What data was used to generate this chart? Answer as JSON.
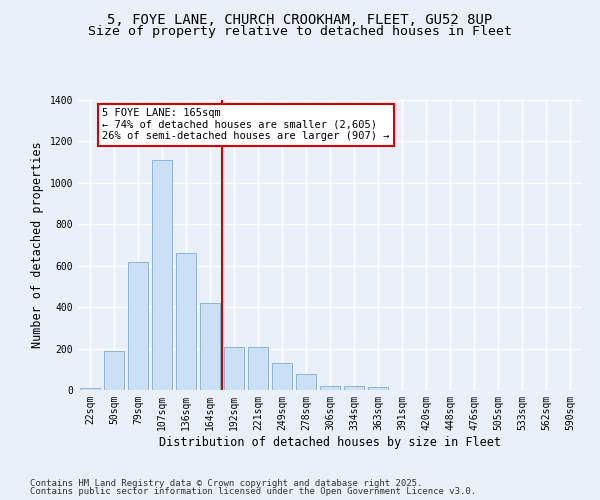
{
  "title_line1": "5, FOYE LANE, CHURCH CROOKHAM, FLEET, GU52 8UP",
  "title_line2": "Size of property relative to detached houses in Fleet",
  "xlabel": "Distribution of detached houses by size in Fleet",
  "ylabel": "Number of detached properties",
  "categories": [
    "22sqm",
    "50sqm",
    "79sqm",
    "107sqm",
    "136sqm",
    "164sqm",
    "192sqm",
    "221sqm",
    "249sqm",
    "278sqm",
    "306sqm",
    "334sqm",
    "363sqm",
    "391sqm",
    "420sqm",
    "448sqm",
    "476sqm",
    "505sqm",
    "533sqm",
    "562sqm",
    "590sqm"
  ],
  "values": [
    10,
    190,
    620,
    1110,
    660,
    420,
    210,
    210,
    130,
    75,
    20,
    20,
    15,
    0,
    0,
    0,
    0,
    0,
    0,
    0,
    0
  ],
  "bar_color": "#cce0f5",
  "bar_edge_color": "#7ab0d8",
  "vline_color": "#cc0000",
  "vline_index": 5.5,
  "annotation_line1": "5 FOYE LANE: 165sqm",
  "annotation_line2": "← 74% of detached houses are smaller (2,605)",
  "annotation_line3": "26% of semi-detached houses are larger (907) →",
  "annotation_box_color": "#cc0000",
  "ylim": [
    0,
    1400
  ],
  "yticks": [
    0,
    200,
    400,
    600,
    800,
    1000,
    1200,
    1400
  ],
  "background_color": "#eaf0fa",
  "plot_bg_color": "#eaf0fa",
  "grid_color": "#ffffff",
  "footnote_line1": "Contains HM Land Registry data © Crown copyright and database right 2025.",
  "footnote_line2": "Contains public sector information licensed under the Open Government Licence v3.0.",
  "title_fontsize": 10,
  "subtitle_fontsize": 9.5,
  "axis_label_fontsize": 8.5,
  "tick_fontsize": 7,
  "annotation_fontsize": 7.5,
  "footnote_fontsize": 6.5
}
